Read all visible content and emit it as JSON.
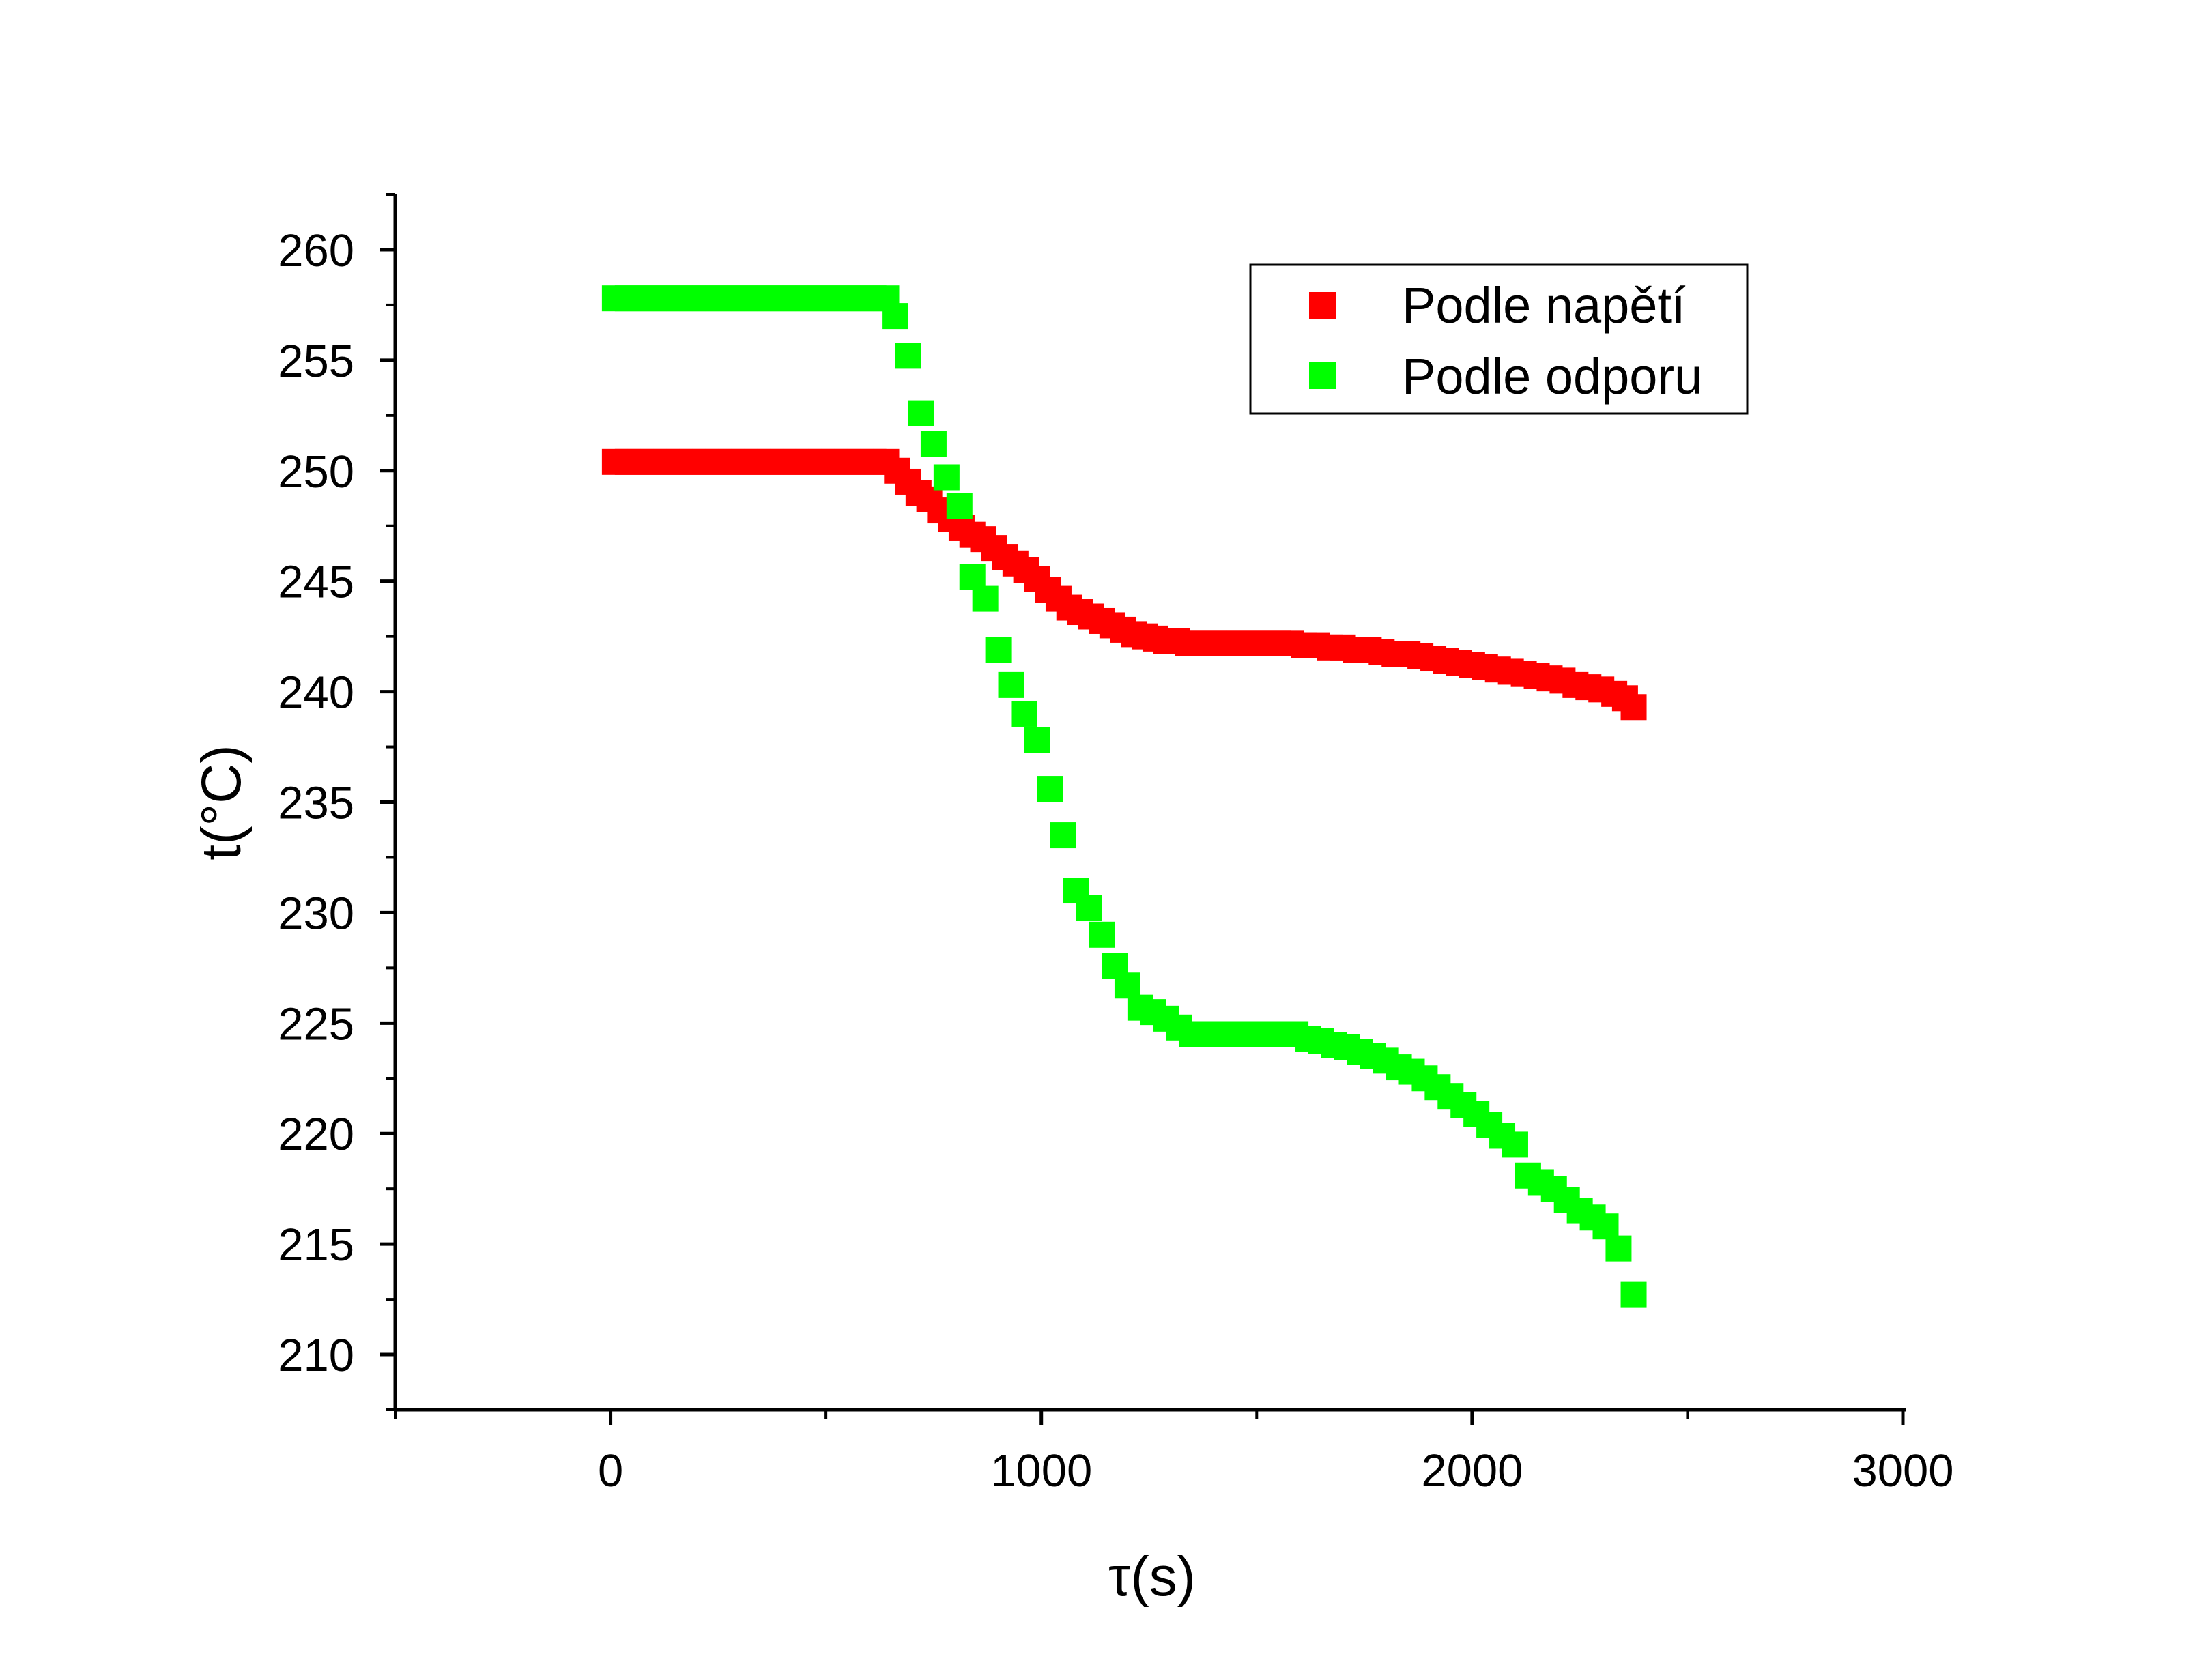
{
  "chart_data": {
    "type": "scatter",
    "title": "",
    "xlabel": "τ(s)",
    "ylabel": "t(°C)",
    "xlim": [
      -500,
      3000
    ],
    "ylim": [
      207.5,
      262.5
    ],
    "xticks": [
      0,
      1000,
      2000,
      3000
    ],
    "yticks": [
      210,
      215,
      220,
      225,
      230,
      235,
      240,
      245,
      250,
      255,
      260
    ],
    "xtick_labels": [
      "0",
      "1000",
      "2000",
      "3000"
    ],
    "ytick_labels": [
      "210",
      "215",
      "220",
      "225",
      "230",
      "235",
      "240",
      "245",
      "250",
      "255",
      "260"
    ],
    "grid": false,
    "legend_position": "top-right",
    "series": [
      {
        "name": "Podle napětí",
        "color": "#ff0000",
        "marker": "square",
        "points": [
          [
            10,
            250.4
          ],
          [
            40,
            250.4
          ],
          [
            70,
            250.4
          ],
          [
            100,
            250.4
          ],
          [
            130,
            250.4
          ],
          [
            160,
            250.4
          ],
          [
            190,
            250.4
          ],
          [
            220,
            250.4
          ],
          [
            250,
            250.4
          ],
          [
            280,
            250.4
          ],
          [
            310,
            250.4
          ],
          [
            340,
            250.4
          ],
          [
            370,
            250.4
          ],
          [
            400,
            250.4
          ],
          [
            430,
            250.4
          ],
          [
            460,
            250.4
          ],
          [
            490,
            250.4
          ],
          [
            520,
            250.4
          ],
          [
            550,
            250.4
          ],
          [
            580,
            250.4
          ],
          [
            610,
            250.4
          ],
          [
            640,
            250.4
          ],
          [
            665,
            250.0
          ],
          [
            690,
            249.5
          ],
          [
            715,
            249.0
          ],
          [
            740,
            248.7
          ],
          [
            765,
            248.2
          ],
          [
            790,
            247.8
          ],
          [
            815,
            247.4
          ],
          [
            840,
            247.1
          ],
          [
            865,
            246.9
          ],
          [
            890,
            246.5
          ],
          [
            915,
            246.1
          ],
          [
            940,
            245.8
          ],
          [
            965,
            245.5
          ],
          [
            990,
            245.1
          ],
          [
            1015,
            244.6
          ],
          [
            1040,
            244.2
          ],
          [
            1065,
            243.8
          ],
          [
            1090,
            243.6
          ],
          [
            1115,
            243.4
          ],
          [
            1140,
            243.2
          ],
          [
            1165,
            243.0
          ],
          [
            1190,
            242.8
          ],
          [
            1215,
            242.6
          ],
          [
            1240,
            242.5
          ],
          [
            1265,
            242.4
          ],
          [
            1290,
            242.3
          ],
          [
            1315,
            242.3
          ],
          [
            1340,
            242.2
          ],
          [
            1370,
            242.2
          ],
          [
            1400,
            242.2
          ],
          [
            1430,
            242.2
          ],
          [
            1460,
            242.2
          ],
          [
            1490,
            242.2
          ],
          [
            1520,
            242.2
          ],
          [
            1550,
            242.2
          ],
          [
            1580,
            242.2
          ],
          [
            1610,
            242.1
          ],
          [
            1640,
            242.1
          ],
          [
            1670,
            242.0
          ],
          [
            1700,
            242.0
          ],
          [
            1730,
            241.9
          ],
          [
            1760,
            241.9
          ],
          [
            1790,
            241.8
          ],
          [
            1820,
            241.7
          ],
          [
            1850,
            241.7
          ],
          [
            1880,
            241.6
          ],
          [
            1910,
            241.5
          ],
          [
            1940,
            241.4
          ],
          [
            1970,
            241.3
          ],
          [
            2000,
            241.2
          ],
          [
            2030,
            241.1
          ],
          [
            2060,
            241.0
          ],
          [
            2090,
            240.9
          ],
          [
            2120,
            240.8
          ],
          [
            2150,
            240.7
          ],
          [
            2180,
            240.6
          ],
          [
            2210,
            240.5
          ],
          [
            2240,
            240.3
          ],
          [
            2270,
            240.2
          ],
          [
            2300,
            240.1
          ],
          [
            2330,
            239.9
          ],
          [
            2355,
            239.7
          ],
          [
            2375,
            239.3
          ]
        ]
      },
      {
        "name": "Podle odporu",
        "color": "#00ff00",
        "marker": "square",
        "points": [
          [
            10,
            257.8
          ],
          [
            40,
            257.8
          ],
          [
            70,
            257.8
          ],
          [
            100,
            257.8
          ],
          [
            130,
            257.8
          ],
          [
            160,
            257.8
          ],
          [
            190,
            257.8
          ],
          [
            220,
            257.8
          ],
          [
            250,
            257.8
          ],
          [
            280,
            257.8
          ],
          [
            310,
            257.8
          ],
          [
            340,
            257.8
          ],
          [
            370,
            257.8
          ],
          [
            400,
            257.8
          ],
          [
            430,
            257.8
          ],
          [
            460,
            257.8
          ],
          [
            490,
            257.8
          ],
          [
            520,
            257.8
          ],
          [
            550,
            257.8
          ],
          [
            580,
            257.8
          ],
          [
            610,
            257.8
          ],
          [
            640,
            257.8
          ],
          [
            660,
            257.0
          ],
          [
            690,
            255.2
          ],
          [
            720,
            252.6
          ],
          [
            750,
            251.2
          ],
          [
            780,
            249.7
          ],
          [
            810,
            248.4
          ],
          [
            840,
            245.2
          ],
          [
            870,
            244.2
          ],
          [
            900,
            241.9
          ],
          [
            930,
            240.3
          ],
          [
            960,
            239.0
          ],
          [
            990,
            237.8
          ],
          [
            1020,
            235.6
          ],
          [
            1050,
            233.5
          ],
          [
            1080,
            231.0
          ],
          [
            1110,
            230.2
          ],
          [
            1140,
            229.0
          ],
          [
            1170,
            227.6
          ],
          [
            1200,
            226.7
          ],
          [
            1230,
            225.7
          ],
          [
            1260,
            225.5
          ],
          [
            1290,
            225.2
          ],
          [
            1320,
            224.8
          ],
          [
            1350,
            224.5
          ],
          [
            1380,
            224.5
          ],
          [
            1410,
            224.5
          ],
          [
            1440,
            224.5
          ],
          [
            1470,
            224.5
          ],
          [
            1500,
            224.5
          ],
          [
            1530,
            224.5
          ],
          [
            1560,
            224.5
          ],
          [
            1590,
            224.5
          ],
          [
            1620,
            224.3
          ],
          [
            1650,
            224.2
          ],
          [
            1680,
            224.0
          ],
          [
            1710,
            223.9
          ],
          [
            1740,
            223.7
          ],
          [
            1770,
            223.5
          ],
          [
            1800,
            223.3
          ],
          [
            1830,
            223.0
          ],
          [
            1860,
            222.8
          ],
          [
            1890,
            222.5
          ],
          [
            1920,
            222.1
          ],
          [
            1950,
            221.7
          ],
          [
            1980,
            221.3
          ],
          [
            2010,
            220.9
          ],
          [
            2040,
            220.4
          ],
          [
            2070,
            219.9
          ],
          [
            2100,
            219.5
          ],
          [
            2130,
            218.1
          ],
          [
            2160,
            217.8
          ],
          [
            2190,
            217.5
          ],
          [
            2220,
            217.0
          ],
          [
            2250,
            216.5
          ],
          [
            2280,
            216.2
          ],
          [
            2310,
            215.8
          ],
          [
            2340,
            214.8
          ],
          [
            2375,
            212.7
          ]
        ]
      }
    ]
  }
}
